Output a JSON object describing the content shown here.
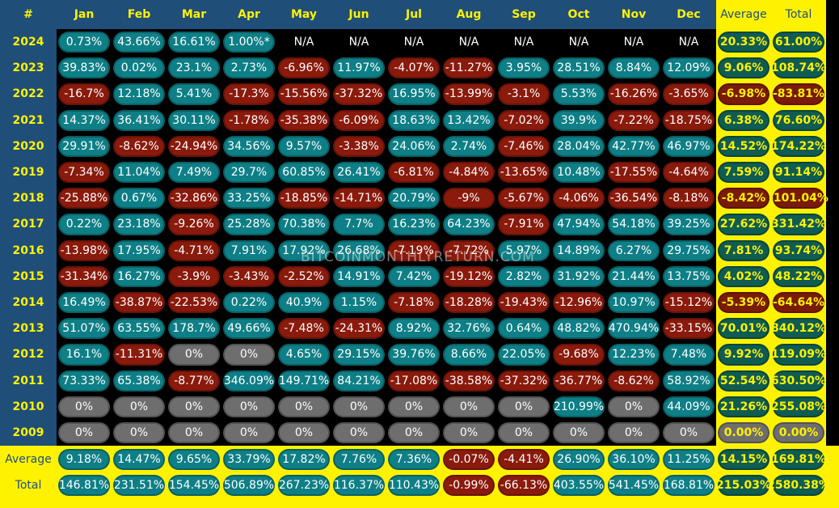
{
  "watermark": "BITCOINMONTHLYRETURN.COM",
  "colors": {
    "header_bg": "#1f4e79",
    "header_text": "#fff200",
    "positive": "#0e7f86",
    "negative": "#8a1a0c",
    "zero": "#6e6e6e",
    "summary_bg": "#fff200"
  },
  "chart_data": {
    "type": "table",
    "corner_label": "#",
    "months": [
      "Jan",
      "Feb",
      "Mar",
      "Apr",
      "May",
      "Jun",
      "Jul",
      "Aug",
      "Sep",
      "Oct",
      "Nov",
      "Dec"
    ],
    "summary_columns": [
      "Average",
      "Total"
    ],
    "rows": [
      {
        "year": "2024",
        "values": [
          "0.73%",
          "43.66%",
          "16.61%",
          "1.00%*",
          "N/A",
          "N/A",
          "N/A",
          "N/A",
          "N/A",
          "N/A",
          "N/A",
          "N/A"
        ],
        "average": "20.33%",
        "total": "61.00%"
      },
      {
        "year": "2023",
        "values": [
          "39.83%",
          "0.02%",
          "23.1%",
          "2.73%",
          "-6.96%",
          "11.97%",
          "-4.07%",
          "-11.27%",
          "3.95%",
          "28.51%",
          "8.84%",
          "12.09%"
        ],
        "average": "9.06%",
        "total": "108.74%"
      },
      {
        "year": "2022",
        "values": [
          "-16.7%",
          "12.18%",
          "5.41%",
          "-17.3%",
          "-15.56%",
          "-37.32%",
          "16.95%",
          "-13.99%",
          "-3.1%",
          "5.53%",
          "-16.26%",
          "-3.65%"
        ],
        "average": "-6.98%",
        "total": "-83.81%"
      },
      {
        "year": "2021",
        "values": [
          "14.37%",
          "36.41%",
          "30.11%",
          "-1.78%",
          "-35.38%",
          "-6.09%",
          "18.63%",
          "13.42%",
          "-7.02%",
          "39.9%",
          "-7.22%",
          "-18.75%"
        ],
        "average": "6.38%",
        "total": "76.60%"
      },
      {
        "year": "2020",
        "values": [
          "29.91%",
          "-8.62%",
          "-24.94%",
          "34.56%",
          "9.57%",
          "-3.38%",
          "24.06%",
          "2.74%",
          "-7.46%",
          "28.04%",
          "42.77%",
          "46.97%"
        ],
        "average": "14.52%",
        "total": "174.22%"
      },
      {
        "year": "2019",
        "values": [
          "-7.34%",
          "11.04%",
          "7.49%",
          "29.7%",
          "60.85%",
          "26.41%",
          "-6.81%",
          "-4.84%",
          "-13.65%",
          "10.48%",
          "-17.55%",
          "-4.64%"
        ],
        "average": "7.59%",
        "total": "91.14%"
      },
      {
        "year": "2018",
        "values": [
          "-25.88%",
          "0.67%",
          "-32.86%",
          "33.25%",
          "-18.85%",
          "-14.71%",
          "20.79%",
          "-9%",
          "-5.67%",
          "-4.06%",
          "-36.54%",
          "-8.18%"
        ],
        "average": "-8.42%",
        "total": "-101.04%"
      },
      {
        "year": "2017",
        "values": [
          "0.22%",
          "23.18%",
          "-9.26%",
          "25.28%",
          "70.38%",
          "7.7%",
          "16.23%",
          "64.23%",
          "-7.91%",
          "47.94%",
          "54.18%",
          "39.25%"
        ],
        "average": "27.62%",
        "total": "331.42%"
      },
      {
        "year": "2016",
        "values": [
          "-13.98%",
          "17.95%",
          "-4.71%",
          "7.91%",
          "17.92%",
          "26.68%",
          "-7.19%",
          "-7.72%",
          "5.97%",
          "14.89%",
          "6.27%",
          "29.75%"
        ],
        "average": "7.81%",
        "total": "93.74%"
      },
      {
        "year": "2015",
        "values": [
          "-31.34%",
          "16.27%",
          "-3.9%",
          "-3.43%",
          "-2.52%",
          "14.91%",
          "7.42%",
          "-19.12%",
          "2.82%",
          "31.92%",
          "21.44%",
          "13.75%"
        ],
        "average": "4.02%",
        "total": "48.22%"
      },
      {
        "year": "2014",
        "values": [
          "16.49%",
          "-38.87%",
          "-22.53%",
          "0.22%",
          "40.9%",
          "1.15%",
          "-7.18%",
          "-18.28%",
          "-19.43%",
          "-12.96%",
          "10.97%",
          "-15.12%"
        ],
        "average": "-5.39%",
        "total": "-64.64%"
      },
      {
        "year": "2013",
        "values": [
          "51.07%",
          "63.55%",
          "178.7%",
          "49.66%",
          "-7.48%",
          "-24.31%",
          "8.92%",
          "32.76%",
          "0.64%",
          "48.82%",
          "470.94%",
          "-33.15%"
        ],
        "average": "70.01%",
        "total": "840.12%"
      },
      {
        "year": "2012",
        "values": [
          "16.1%",
          "-11.31%",
          "0%",
          "0%",
          "4.65%",
          "29.15%",
          "39.76%",
          "8.66%",
          "22.05%",
          "-9.68%",
          "12.23%",
          "7.48%"
        ],
        "average": "9.92%",
        "total": "119.09%"
      },
      {
        "year": "2011",
        "values": [
          "73.33%",
          "65.38%",
          "-8.77%",
          "346.09%",
          "149.71%",
          "84.21%",
          "-17.08%",
          "-38.58%",
          "-37.32%",
          "-36.77%",
          "-8.62%",
          "58.92%"
        ],
        "average": "52.54%",
        "total": "630.50%"
      },
      {
        "year": "2010",
        "values": [
          "0%",
          "0%",
          "0%",
          "0%",
          "0%",
          "0%",
          "0%",
          "0%",
          "0%",
          "210.99%",
          "0%",
          "44.09%"
        ],
        "average": "21.26%",
        "total": "255.08%"
      },
      {
        "year": "2009",
        "values": [
          "0%",
          "0%",
          "0%",
          "0%",
          "0%",
          "0%",
          "0%",
          "0%",
          "0%",
          "0%",
          "0%",
          "0%"
        ],
        "average": "0.00%",
        "total": "0.00%"
      }
    ],
    "summary_rows": [
      {
        "label": "Average",
        "values": [
          "9.18%",
          "14.47%",
          "9.65%",
          "33.79%",
          "17.82%",
          "7.76%",
          "7.36%",
          "-0.07%",
          "-4.41%",
          "26.90%",
          "36.10%",
          "11.25%"
        ],
        "average": "14.15%",
        "total": "169.81%"
      },
      {
        "label": "Total",
        "values": [
          "146.81%",
          "231.51%",
          "154.45%",
          "506.89%",
          "267.23%",
          "116.37%",
          "110.43%",
          "-0.99%",
          "-66.13%",
          "403.55%",
          "541.45%",
          "168.81%"
        ],
        "average": "215.03%",
        "total": "2580.38%"
      }
    ]
  }
}
